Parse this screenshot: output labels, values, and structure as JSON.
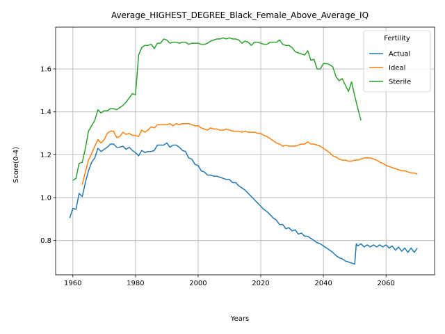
{
  "chart_data": {
    "type": "line",
    "title": "Average_HIGHEST_DEGREE_Black_Female_Above_Average_IQ",
    "xlabel": "Years",
    "ylabel": "Score(0-4)",
    "xlim": [
      1954.5,
      2075.5
    ],
    "ylim": [
      0.64,
      1.795
    ],
    "xticks": [
      1960,
      1980,
      2000,
      2020,
      2040,
      2060
    ],
    "yticks": [
      0.8,
      1.0,
      1.2,
      1.4,
      1.6
    ],
    "grid": true,
    "legend": {
      "title": "Fertility",
      "placement": "top-right"
    },
    "series": [
      {
        "name": "Actual",
        "color": "#1f77b4",
        "points": [
          [
            1959,
            0.905
          ],
          [
            1960,
            0.95
          ],
          [
            1961,
            0.945
          ],
          [
            1962,
            1.02
          ],
          [
            1963,
            1.005
          ],
          [
            1964,
            1.07
          ],
          [
            1965,
            1.125
          ],
          [
            1966,
            1.165
          ],
          [
            1967,
            1.185
          ],
          [
            1968,
            1.23
          ],
          [
            1969,
            1.215
          ],
          [
            1970,
            1.225
          ],
          [
            1971,
            1.235
          ],
          [
            1972,
            1.25
          ],
          [
            1973,
            1.25
          ],
          [
            1974,
            1.235
          ],
          [
            1975,
            1.235
          ],
          [
            1976,
            1.24
          ],
          [
            1977,
            1.225
          ],
          [
            1978,
            1.235
          ],
          [
            1979,
            1.22
          ],
          [
            1980,
            1.21
          ],
          [
            1981,
            1.195
          ],
          [
            1982,
            1.22
          ],
          [
            1983,
            1.21
          ],
          [
            1984,
            1.215
          ],
          [
            1985,
            1.215
          ],
          [
            1986,
            1.22
          ],
          [
            1987,
            1.245
          ],
          [
            1988,
            1.245
          ],
          [
            1989,
            1.245
          ],
          [
            1990,
            1.255
          ],
          [
            1991,
            1.235
          ],
          [
            1992,
            1.245
          ],
          [
            1993,
            1.245
          ],
          [
            1994,
            1.235
          ],
          [
            1995,
            1.22
          ],
          [
            1996,
            1.215
          ],
          [
            1997,
            1.185
          ],
          [
            1998,
            1.18
          ],
          [
            1999,
            1.155
          ],
          [
            2000,
            1.15
          ],
          [
            2001,
            1.125
          ],
          [
            2002,
            1.12
          ],
          [
            2003,
            1.105
          ],
          [
            2004,
            1.105
          ],
          [
            2005,
            1.1
          ],
          [
            2006,
            1.1
          ],
          [
            2007,
            1.095
          ],
          [
            2008,
            1.09
          ],
          [
            2009,
            1.085
          ],
          [
            2010,
            1.085
          ],
          [
            2011,
            1.07
          ],
          [
            2012,
            1.07
          ],
          [
            2013,
            1.055
          ],
          [
            2014,
            1.045
          ],
          [
            2015,
            1.035
          ],
          [
            2016,
            1.02
          ],
          [
            2017,
            1.005
          ],
          [
            2018,
            0.99
          ],
          [
            2019,
            0.975
          ],
          [
            2020,
            0.96
          ],
          [
            2021,
            0.945
          ],
          [
            2022,
            0.935
          ],
          [
            2023,
            0.92
          ],
          [
            2024,
            0.905
          ],
          [
            2025,
            0.895
          ],
          [
            2026,
            0.875
          ],
          [
            2027,
            0.875
          ],
          [
            2028,
            0.855
          ],
          [
            2029,
            0.86
          ],
          [
            2030,
            0.845
          ],
          [
            2031,
            0.85
          ],
          [
            2032,
            0.83
          ],
          [
            2033,
            0.835
          ],
          [
            2034,
            0.82
          ],
          [
            2035,
            0.82
          ],
          [
            2036,
            0.81
          ],
          [
            2037,
            0.8
          ],
          [
            2038,
            0.79
          ],
          [
            2039,
            0.785
          ],
          [
            2040,
            0.775
          ],
          [
            2041,
            0.765
          ],
          [
            2042,
            0.755
          ],
          [
            2043,
            0.745
          ],
          [
            2044,
            0.73
          ],
          [
            2045,
            0.72
          ],
          [
            2046,
            0.715
          ],
          [
            2047,
            0.705
          ],
          [
            2048,
            0.7
          ],
          [
            2049,
            0.695
          ],
          [
            2050,
            0.69
          ],
          [
            2050.5,
            0.785
          ],
          [
            2051,
            0.775
          ],
          [
            2052,
            0.785
          ],
          [
            2053,
            0.77
          ],
          [
            2054,
            0.78
          ],
          [
            2055,
            0.77
          ],
          [
            2056,
            0.78
          ],
          [
            2057,
            0.77
          ],
          [
            2058,
            0.78
          ],
          [
            2059,
            0.77
          ],
          [
            2060,
            0.78
          ],
          [
            2061,
            0.765
          ],
          [
            2062,
            0.775
          ],
          [
            2063,
            0.755
          ],
          [
            2064,
            0.77
          ],
          [
            2065,
            0.75
          ],
          [
            2066,
            0.765
          ],
          [
            2067,
            0.745
          ],
          [
            2068,
            0.765
          ],
          [
            2069,
            0.745
          ],
          [
            2070,
            0.765
          ]
        ]
      },
      {
        "name": "Ideal",
        "color": "#ff7f0e",
        "points": [
          [
            1963,
            1.06
          ],
          [
            1964,
            1.12
          ],
          [
            1965,
            1.175
          ],
          [
            1966,
            1.205
          ],
          [
            1967,
            1.24
          ],
          [
            1968,
            1.27
          ],
          [
            1969,
            1.255
          ],
          [
            1970,
            1.27
          ],
          [
            1971,
            1.3
          ],
          [
            1972,
            1.31
          ],
          [
            1973,
            1.31
          ],
          [
            1974,
            1.28
          ],
          [
            1975,
            1.285
          ],
          [
            1976,
            1.305
          ],
          [
            1977,
            1.295
          ],
          [
            1978,
            1.3
          ],
          [
            1979,
            1.29
          ],
          [
            1980,
            1.29
          ],
          [
            1981,
            1.285
          ],
          [
            1982,
            1.315
          ],
          [
            1983,
            1.305
          ],
          [
            1984,
            1.315
          ],
          [
            1985,
            1.33
          ],
          [
            1986,
            1.325
          ],
          [
            1987,
            1.34
          ],
          [
            1988,
            1.34
          ],
          [
            1989,
            1.34
          ],
          [
            1990,
            1.34
          ],
          [
            1991,
            1.345
          ],
          [
            1992,
            1.335
          ],
          [
            1993,
            1.345
          ],
          [
            1994,
            1.34
          ],
          [
            1995,
            1.345
          ],
          [
            1996,
            1.345
          ],
          [
            1997,
            1.345
          ],
          [
            1998,
            1.34
          ],
          [
            1999,
            1.335
          ],
          [
            2000,
            1.335
          ],
          [
            2001,
            1.325
          ],
          [
            2002,
            1.32
          ],
          [
            2003,
            1.315
          ],
          [
            2004,
            1.325
          ],
          [
            2005,
            1.32
          ],
          [
            2006,
            1.32
          ],
          [
            2007,
            1.315
          ],
          [
            2008,
            1.315
          ],
          [
            2009,
            1.32
          ],
          [
            2010,
            1.315
          ],
          [
            2011,
            1.31
          ],
          [
            2012,
            1.31
          ],
          [
            2013,
            1.31
          ],
          [
            2014,
            1.305
          ],
          [
            2015,
            1.31
          ],
          [
            2016,
            1.305
          ],
          [
            2017,
            1.305
          ],
          [
            2018,
            1.305
          ],
          [
            2019,
            1.3
          ],
          [
            2020,
            1.3
          ],
          [
            2021,
            1.29
          ],
          [
            2022,
            1.285
          ],
          [
            2023,
            1.275
          ],
          [
            2024,
            1.265
          ],
          [
            2025,
            1.255
          ],
          [
            2026,
            1.25
          ],
          [
            2027,
            1.24
          ],
          [
            2028,
            1.245
          ],
          [
            2029,
            1.24
          ],
          [
            2030,
            1.24
          ],
          [
            2031,
            1.24
          ],
          [
            2032,
            1.245
          ],
          [
            2033,
            1.25
          ],
          [
            2034,
            1.25
          ],
          [
            2035,
            1.26
          ],
          [
            2036,
            1.25
          ],
          [
            2037,
            1.25
          ],
          [
            2038,
            1.245
          ],
          [
            2039,
            1.24
          ],
          [
            2040,
            1.23
          ],
          [
            2041,
            1.22
          ],
          [
            2042,
            1.21
          ],
          [
            2043,
            1.195
          ],
          [
            2044,
            1.19
          ],
          [
            2045,
            1.18
          ],
          [
            2046,
            1.175
          ],
          [
            2047,
            1.175
          ],
          [
            2048,
            1.17
          ],
          [
            2049,
            1.17
          ],
          [
            2050,
            1.175
          ],
          [
            2051,
            1.175
          ],
          [
            2052,
            1.18
          ],
          [
            2053,
            1.185
          ],
          [
            2054,
            1.185
          ],
          [
            2055,
            1.185
          ],
          [
            2056,
            1.18
          ],
          [
            2057,
            1.175
          ],
          [
            2058,
            1.165
          ],
          [
            2059,
            1.16
          ],
          [
            2060,
            1.15
          ],
          [
            2061,
            1.145
          ],
          [
            2062,
            1.14
          ],
          [
            2063,
            1.135
          ],
          [
            2064,
            1.13
          ],
          [
            2065,
            1.125
          ],
          [
            2066,
            1.125
          ],
          [
            2067,
            1.12
          ],
          [
            2068,
            1.115
          ],
          [
            2069,
            1.115
          ],
          [
            2070,
            1.11
          ]
        ]
      },
      {
        "name": "Sterile",
        "color": "#2ca02c",
        "points": [
          [
            1960,
            1.08
          ],
          [
            1961,
            1.09
          ],
          [
            1962,
            1.16
          ],
          [
            1963,
            1.165
          ],
          [
            1964,
            1.23
          ],
          [
            1965,
            1.31
          ],
          [
            1966,
            1.335
          ],
          [
            1967,
            1.36
          ],
          [
            1968,
            1.41
          ],
          [
            1969,
            1.395
          ],
          [
            1970,
            1.405
          ],
          [
            1971,
            1.405
          ],
          [
            1972,
            1.415
          ],
          [
            1973,
            1.415
          ],
          [
            1974,
            1.41
          ],
          [
            1975,
            1.42
          ],
          [
            1976,
            1.43
          ],
          [
            1977,
            1.445
          ],
          [
            1978,
            1.465
          ],
          [
            1979,
            1.485
          ],
          [
            1980,
            1.48
          ],
          [
            1981,
            1.665
          ],
          [
            1982,
            1.7
          ],
          [
            1983,
            1.71
          ],
          [
            1984,
            1.71
          ],
          [
            1985,
            1.715
          ],
          [
            1986,
            1.695
          ],
          [
            1987,
            1.72
          ],
          [
            1988,
            1.72
          ],
          [
            1989,
            1.74
          ],
          [
            1990,
            1.735
          ],
          [
            1991,
            1.72
          ],
          [
            1992,
            1.725
          ],
          [
            1993,
            1.725
          ],
          [
            1994,
            1.72
          ],
          [
            1995,
            1.725
          ],
          [
            1996,
            1.725
          ],
          [
            1997,
            1.715
          ],
          [
            1998,
            1.72
          ],
          [
            1999,
            1.72
          ],
          [
            2000,
            1.72
          ],
          [
            2001,
            1.715
          ],
          [
            2002,
            1.715
          ],
          [
            2003,
            1.72
          ],
          [
            2004,
            1.73
          ],
          [
            2005,
            1.735
          ],
          [
            2006,
            1.74
          ],
          [
            2007,
            1.74
          ],
          [
            2008,
            1.745
          ],
          [
            2009,
            1.74
          ],
          [
            2010,
            1.745
          ],
          [
            2011,
            1.74
          ],
          [
            2012,
            1.74
          ],
          [
            2013,
            1.735
          ],
          [
            2014,
            1.72
          ],
          [
            2015,
            1.73
          ],
          [
            2016,
            1.725
          ],
          [
            2017,
            1.71
          ],
          [
            2018,
            1.725
          ],
          [
            2019,
            1.725
          ],
          [
            2020,
            1.72
          ],
          [
            2021,
            1.715
          ],
          [
            2022,
            1.715
          ],
          [
            2023,
            1.725
          ],
          [
            2024,
            1.725
          ],
          [
            2025,
            1.725
          ],
          [
            2026,
            1.735
          ],
          [
            2027,
            1.715
          ],
          [
            2028,
            1.71
          ],
          [
            2029,
            1.71
          ],
          [
            2030,
            1.7
          ],
          [
            2031,
            1.68
          ],
          [
            2032,
            1.675
          ],
          [
            2033,
            1.67
          ],
          [
            2034,
            1.665
          ],
          [
            2035,
            1.685
          ],
          [
            2036,
            1.64
          ],
          [
            2037,
            1.645
          ],
          [
            2038,
            1.6
          ],
          [
            2039,
            1.6
          ],
          [
            2040,
            1.625
          ],
          [
            2041,
            1.625
          ],
          [
            2042,
            1.62
          ],
          [
            2043,
            1.61
          ],
          [
            2044,
            1.565
          ],
          [
            2045,
            1.545
          ],
          [
            2046,
            1.555
          ],
          [
            2047,
            1.525
          ],
          [
            2048,
            1.495
          ],
          [
            2049,
            1.54
          ],
          [
            2050,
            1.475
          ],
          [
            2051,
            1.415
          ],
          [
            2052,
            1.36
          ]
        ]
      }
    ]
  }
}
